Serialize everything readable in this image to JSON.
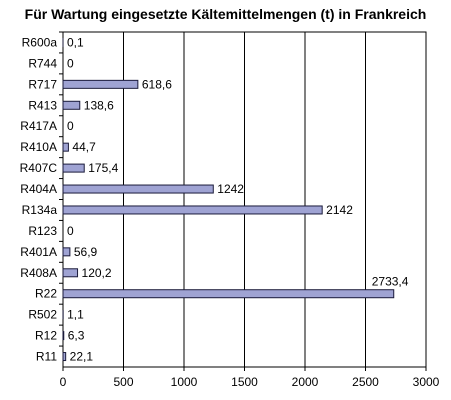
{
  "chart_data": {
    "type": "bar",
    "orientation": "horizontal",
    "title": "Für Wartung eingesetzte Kältemittelmengen (t) in Frankreich",
    "xlabel": "",
    "ylabel": "",
    "categories": [
      "R600a",
      "R744",
      "R717",
      "R413",
      "R417A",
      "R410A",
      "R407C",
      "R404A",
      "R134a",
      "R123",
      "R401A",
      "R408A",
      "R22",
      "R502",
      "R12",
      "R11"
    ],
    "values": [
      0.1,
      0,
      618.6,
      138.6,
      0,
      44.7,
      175.4,
      1242,
      2142,
      0,
      56.9,
      120.2,
      2733.4,
      1.1,
      6.3,
      22.1
    ],
    "value_labels": [
      "0,1",
      "0",
      "618,6",
      "138,6",
      "0",
      "44,7",
      "175,4",
      "1242",
      "2142",
      "0",
      "56,9",
      "120,2",
      "2733,4",
      "1,1",
      "6,3",
      "22,1"
    ],
    "xlim": [
      0,
      3000
    ],
    "xticks": [
      0,
      500,
      1000,
      1500,
      2000,
      2500,
      3000
    ],
    "xtick_labels": [
      "0",
      "500",
      "1000",
      "1500",
      "2000",
      "2500",
      "3000"
    ],
    "grid": true,
    "legend": "none",
    "colors": {
      "bar_fill": "#9fa3d3",
      "bar_stroke": "#1a1a3a",
      "grid": "#000000"
    }
  }
}
